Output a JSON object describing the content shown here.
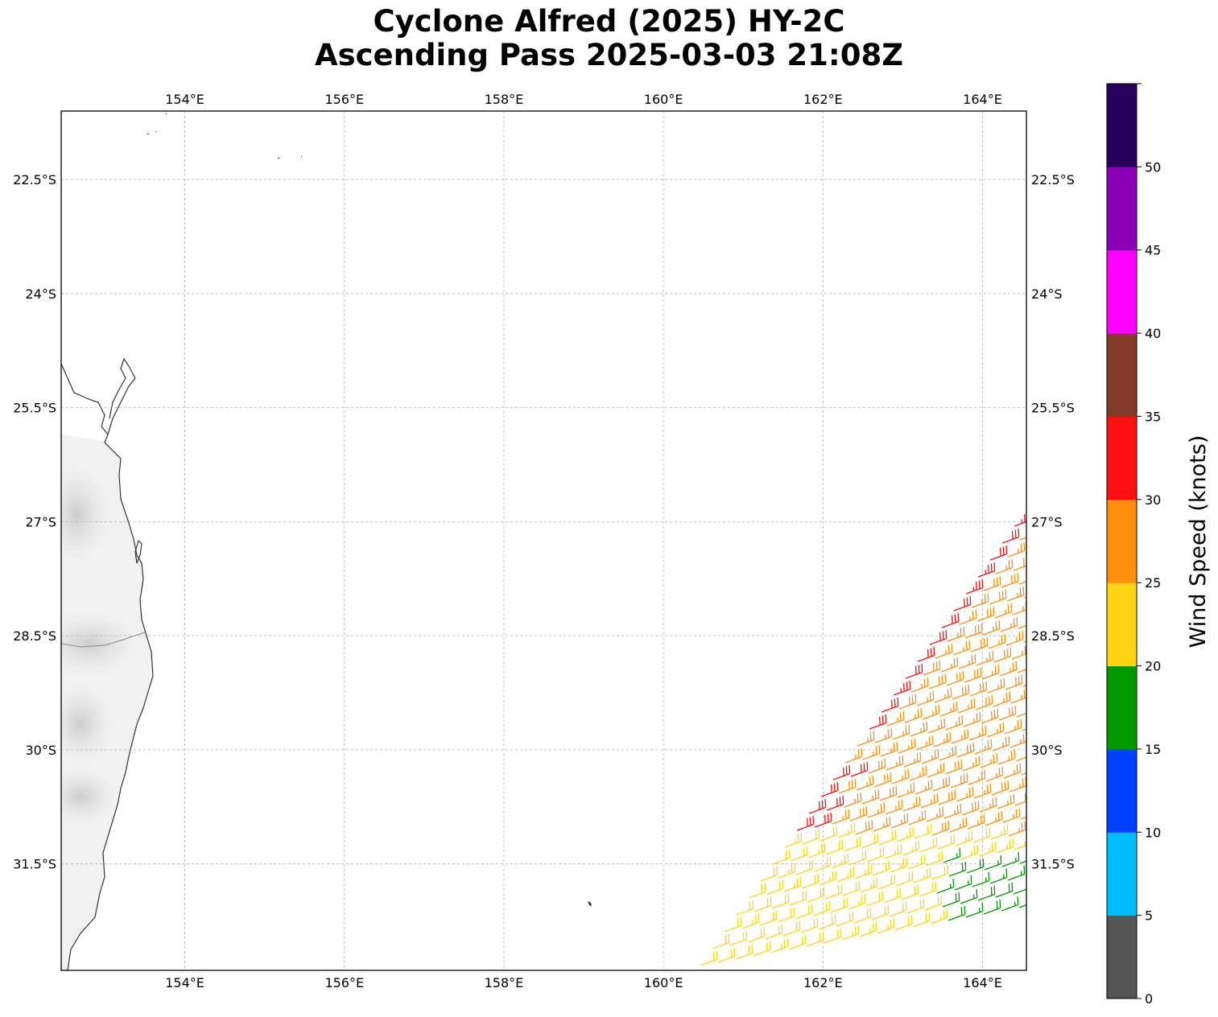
{
  "title": {
    "line1": "Cyclone Alfred (2025) HY-2C",
    "line2": "Ascending Pass 2025-03-03 21:08Z"
  },
  "map": {
    "lon_range": [
      152.45,
      164.55
    ],
    "lat_range": [
      -32.9,
      -21.6
    ],
    "lon_ticks": [
      {
        "value": 154,
        "label": "154°E"
      },
      {
        "value": 156,
        "label": "156°E"
      },
      {
        "value": 158,
        "label": "158°E"
      },
      {
        "value": 160,
        "label": "160°E"
      },
      {
        "value": 162,
        "label": "162°E"
      },
      {
        "value": 164,
        "label": "164°E"
      }
    ],
    "lat_ticks": [
      {
        "value": -22.5,
        "label": "22.5°S"
      },
      {
        "value": -24,
        "label": "24°S"
      },
      {
        "value": -25.5,
        "label": "25.5°S"
      },
      {
        "value": -27,
        "label": "27°S"
      },
      {
        "value": -28.5,
        "label": "28.5°S"
      },
      {
        "value": -30,
        "label": "30°S"
      },
      {
        "value": -31.5,
        "label": "31.5°S"
      }
    ],
    "gridlines": true,
    "coastline_color": "#333333"
  },
  "colorbar": {
    "label": "Wind Speed (knots)",
    "bins": [
      {
        "from": 0,
        "to": 5,
        "color": "#555555"
      },
      {
        "from": 5,
        "to": 10,
        "color": "#00bfff"
      },
      {
        "from": 10,
        "to": 15,
        "color": "#0040ff"
      },
      {
        "from": 15,
        "to": 20,
        "color": "#009900"
      },
      {
        "from": 20,
        "to": 25,
        "color": "#ffd514"
      },
      {
        "from": 25,
        "to": 30,
        "color": "#ff900e"
      },
      {
        "from": 30,
        "to": 35,
        "color": "#ff1010"
      },
      {
        "from": 35,
        "to": 40,
        "color": "#843b2a"
      },
      {
        "from": 40,
        "to": 45,
        "color": "#ff00ff"
      },
      {
        "from": 45,
        "to": 50,
        "color": "#8b00b5"
      },
      {
        "from": 50,
        "to": 55,
        "color": "#2a005f"
      }
    ],
    "ticks": [
      {
        "value": 0,
        "label": "0"
      },
      {
        "value": 5,
        "label": "5"
      },
      {
        "value": 10,
        "label": "10"
      },
      {
        "value": 15,
        "label": "15"
      },
      {
        "value": 20,
        "label": "20"
      },
      {
        "value": 25,
        "label": "25"
      },
      {
        "value": 30,
        "label": "30"
      },
      {
        "value": 35,
        "label": "35"
      },
      {
        "value": 40,
        "label": "40"
      },
      {
        "value": 45,
        "label": "45"
      },
      {
        "value": 50,
        "label": "50"
      }
    ]
  }
}
